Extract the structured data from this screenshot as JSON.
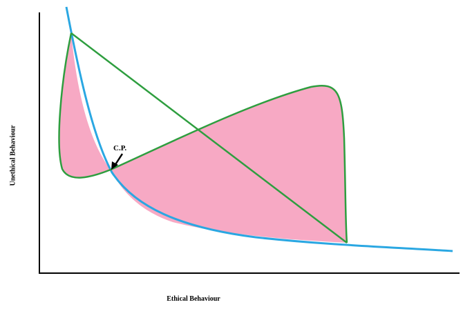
{
  "axes": {
    "x_label": "Ethical Behaviour",
    "y_label": "Unethical Behaviour"
  },
  "annotation": {
    "text": "C.P."
  },
  "colors": {
    "axis": "#000000",
    "blue_curve": "#2aa7e2",
    "green_curve": "#2e9e3f",
    "shaded_region": "#f7a9c4",
    "arrow": "#000000"
  }
}
